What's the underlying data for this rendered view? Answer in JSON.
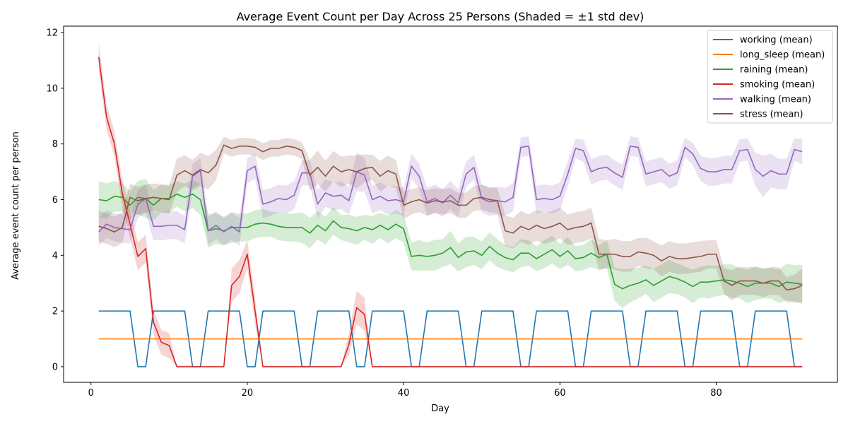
{
  "chart_data": {
    "type": "line",
    "title": "Average Event Count per Day Across 25 Persons (Shaded = ±1 std dev)",
    "xlabel": "Day",
    "ylabel": "Average event count per person",
    "xlim": [
      -3.5,
      95.5
    ],
    "ylim": [
      -0.56,
      12.23
    ],
    "xticks": [
      0,
      20,
      40,
      60,
      80
    ],
    "yticks": [
      0,
      2,
      4,
      6,
      8,
      10,
      12
    ],
    "grid": false,
    "legend_position": "top-right",
    "x_start": 1,
    "series": [
      {
        "name": "working (mean)",
        "color": "#1f77b4",
        "values": [
          2,
          2,
          2,
          2,
          2,
          0,
          0,
          2,
          2,
          2,
          2,
          2,
          0,
          0,
          2,
          2,
          2,
          2,
          2,
          0,
          0,
          2,
          2,
          2,
          2,
          2,
          0,
          0,
          2,
          2,
          2,
          2,
          2,
          0,
          0,
          2,
          2,
          2,
          2,
          2,
          0,
          0,
          2,
          2,
          2,
          2,
          2,
          0,
          0,
          2,
          2,
          2,
          2,
          2,
          0,
          0,
          2,
          2,
          2,
          2,
          2,
          0,
          0,
          2,
          2,
          2,
          2,
          2,
          0,
          0,
          2,
          2,
          2,
          2,
          2,
          0,
          0,
          2,
          2,
          2,
          2,
          2,
          0,
          0,
          2,
          2,
          2,
          2,
          2,
          0,
          0
        ],
        "std": [
          0,
          0,
          0,
          0,
          0,
          0,
          0,
          0,
          0,
          0,
          0,
          0,
          0,
          0,
          0,
          0,
          0,
          0,
          0,
          0,
          0,
          0,
          0,
          0,
          0,
          0,
          0,
          0,
          0,
          0,
          0,
          0,
          0,
          0,
          0,
          0,
          0,
          0,
          0,
          0,
          0,
          0,
          0,
          0,
          0,
          0,
          0,
          0,
          0,
          0,
          0,
          0,
          0,
          0,
          0,
          0,
          0,
          0,
          0,
          0,
          0,
          0,
          0,
          0,
          0,
          0,
          0,
          0,
          0,
          0,
          0,
          0,
          0,
          0,
          0,
          0,
          0,
          0,
          0,
          0,
          0,
          0,
          0,
          0,
          0,
          0,
          0,
          0,
          0,
          0,
          0
        ]
      },
      {
        "name": "long_sleep (mean)",
        "color": "#ff7f0e",
        "values": [
          1,
          1,
          1,
          1,
          1,
          1,
          1,
          1,
          1,
          1,
          1,
          1,
          1,
          1,
          1,
          1,
          1,
          1,
          1,
          1,
          1,
          1,
          1,
          1,
          1,
          1,
          1,
          1,
          1,
          1,
          1,
          1,
          1,
          1,
          1,
          1,
          1,
          1,
          1,
          1,
          1,
          1,
          1,
          1,
          1,
          1,
          1,
          1,
          1,
          1,
          1,
          1,
          1,
          1,
          1,
          1,
          1,
          1,
          1,
          1,
          1,
          1,
          1,
          1,
          1,
          1,
          1,
          1,
          1,
          1,
          1,
          1,
          1,
          1,
          1,
          1,
          1,
          1,
          1,
          1,
          1,
          1,
          1,
          1,
          1,
          1,
          1,
          1,
          1,
          1,
          1
        ],
        "std": [
          0,
          0,
          0,
          0,
          0,
          0,
          0,
          0,
          0,
          0,
          0,
          0,
          0,
          0,
          0,
          0,
          0,
          0,
          0,
          0,
          0,
          0,
          0,
          0,
          0,
          0,
          0,
          0,
          0,
          0,
          0,
          0,
          0,
          0,
          0,
          0,
          0,
          0,
          0,
          0,
          0,
          0,
          0,
          0,
          0,
          0,
          0,
          0,
          0,
          0,
          0,
          0,
          0,
          0,
          0,
          0,
          0,
          0,
          0,
          0,
          0,
          0,
          0,
          0,
          0,
          0,
          0,
          0,
          0,
          0,
          0,
          0,
          0,
          0,
          0,
          0,
          0,
          0,
          0,
          0,
          0,
          0,
          0,
          0,
          0,
          0,
          0,
          0,
          0,
          0,
          0
        ]
      },
      {
        "name": "raining (mean)",
        "color": "#2ca02c",
        "values": [
          6.0,
          5.96,
          6.12,
          6.08,
          5.8,
          6.08,
          6.04,
          5.8,
          6.04,
          6.04,
          6.2,
          6.08,
          6.2,
          6.0,
          4.88,
          4.96,
          4.88,
          5.0,
          5.0,
          5.0,
          5.12,
          5.16,
          5.12,
          5.04,
          5.0,
          5.0,
          5.0,
          4.8,
          5.08,
          4.88,
          5.24,
          5.0,
          4.96,
          4.88,
          5.0,
          4.92,
          5.08,
          4.92,
          5.12,
          4.96,
          3.96,
          4.0,
          3.96,
          4.0,
          4.08,
          4.28,
          3.92,
          4.12,
          4.16,
          4.0,
          4.32,
          4.08,
          3.92,
          3.84,
          4.08,
          4.08,
          3.88,
          4.04,
          4.2,
          3.96,
          4.16,
          3.88,
          3.92,
          4.08,
          3.92,
          4.04,
          2.96,
          2.8,
          2.92,
          3.0,
          3.12,
          2.92,
          3.08,
          3.24,
          3.16,
          3.04,
          2.88,
          3.04,
          3.04,
          3.08,
          3.12,
          3.08,
          3.0,
          2.88,
          3.0,
          3.0,
          3.0,
          2.88,
          3.04,
          3.0,
          2.96
        ],
        "std": [
          0.65,
          0.62,
          0.55,
          0.5,
          0.5,
          0.6,
          0.7,
          0.55,
          0.5,
          0.5,
          0.45,
          0.5,
          0.5,
          0.55,
          0.6,
          0.55,
          0.5,
          0.55,
          0.5,
          0.5,
          0.5,
          0.5,
          0.45,
          0.5,
          0.5,
          0.5,
          0.55,
          0.55,
          0.5,
          0.5,
          0.5,
          0.45,
          0.5,
          0.5,
          0.45,
          0.5,
          0.45,
          0.5,
          0.5,
          0.5,
          0.5,
          0.55,
          0.5,
          0.55,
          0.5,
          0.6,
          0.5,
          0.55,
          0.5,
          0.5,
          0.5,
          0.5,
          0.45,
          0.45,
          0.5,
          0.45,
          0.45,
          0.5,
          0.5,
          0.45,
          0.5,
          0.45,
          0.45,
          0.5,
          0.45,
          0.5,
          0.6,
          0.7,
          0.6,
          0.55,
          0.5,
          0.6,
          0.6,
          0.6,
          0.55,
          0.55,
          0.6,
          0.55,
          0.6,
          0.55,
          0.55,
          0.6,
          0.55,
          0.6,
          0.6,
          0.55,
          0.55,
          0.6,
          0.65,
          0.65,
          0.7
        ]
      },
      {
        "name": "smoking (mean)",
        "color": "#d62728",
        "values": [
          11.12,
          8.96,
          8.0,
          6.24,
          5.12,
          3.96,
          4.24,
          1.6,
          0.88,
          0.76,
          0,
          0,
          0,
          0,
          0,
          0,
          0,
          2.92,
          3.24,
          4.04,
          2.0,
          0,
          0,
          0,
          0,
          0,
          0,
          0,
          0,
          0,
          0,
          0,
          0.8,
          2.12,
          1.88,
          0,
          0,
          0,
          0,
          0,
          0,
          0,
          0,
          0,
          0,
          0,
          0,
          0,
          0,
          0,
          0,
          0,
          0,
          0,
          0,
          0,
          0,
          0,
          0,
          0,
          0,
          0,
          0,
          0,
          0,
          0,
          0,
          0,
          0,
          0,
          0,
          0,
          0,
          0,
          0,
          0,
          0,
          0,
          0,
          0,
          0,
          0,
          0,
          0,
          0,
          0,
          0,
          0,
          0,
          0,
          0
        ],
        "std": [
          0.5,
          0.45,
          0.45,
          0.5,
          0.5,
          0.5,
          0.5,
          0.45,
          0.45,
          0.45,
          0,
          0,
          0,
          0,
          0,
          0,
          0,
          0.6,
          0.6,
          0.5,
          0.5,
          0,
          0,
          0,
          0,
          0,
          0,
          0,
          0,
          0,
          0,
          0,
          0.4,
          0.6,
          0.6,
          0,
          0,
          0,
          0,
          0,
          0,
          0,
          0,
          0,
          0,
          0,
          0,
          0,
          0,
          0,
          0,
          0,
          0,
          0,
          0,
          0,
          0,
          0,
          0,
          0,
          0,
          0,
          0,
          0,
          0,
          0,
          0,
          0,
          0,
          0,
          0,
          0,
          0,
          0,
          0,
          0,
          0,
          0,
          0,
          0,
          0,
          0,
          0,
          0,
          0,
          0,
          0,
          0,
          0,
          0,
          0
        ]
      },
      {
        "name": "walking (mean)",
        "color": "#9467bd",
        "values": [
          4.84,
          5.12,
          5.0,
          4.96,
          4.92,
          5.84,
          6.04,
          5.04,
          5.04,
          5.08,
          5.08,
          4.92,
          6.84,
          7.04,
          4.88,
          5.08,
          4.84,
          5.04,
          4.84,
          7.04,
          7.2,
          5.84,
          5.92,
          6.04,
          6.0,
          6.16,
          6.96,
          6.96,
          5.84,
          6.24,
          6.12,
          6.16,
          5.96,
          7.0,
          6.88,
          6.0,
          6.12,
          5.96,
          6.0,
          5.92,
          7.2,
          6.84,
          5.92,
          6.04,
          5.88,
          6.16,
          5.88,
          6.92,
          7.16,
          6.04,
          5.92,
          5.96,
          5.92,
          6.08,
          7.88,
          7.92,
          6.0,
          6.04,
          6.0,
          6.12,
          6.92,
          7.84,
          7.76,
          7.0,
          7.12,
          7.16,
          6.96,
          6.8,
          7.92,
          7.88,
          6.92,
          7.0,
          7.08,
          6.84,
          6.96,
          7.88,
          7.64,
          7.12,
          7.0,
          7.0,
          7.08,
          7.08,
          7.76,
          7.8,
          7.08,
          6.84,
          7.04,
          6.92,
          6.92,
          7.8,
          7.72
        ],
        "std": [
          0.5,
          0.5,
          0.5,
          0.5,
          0.5,
          0.5,
          0.5,
          0.5,
          0.5,
          0.5,
          0.5,
          0.5,
          0.45,
          0.45,
          0.5,
          0.5,
          0.5,
          0.5,
          0.5,
          0.45,
          0.45,
          0.5,
          0.5,
          0.5,
          0.5,
          0.5,
          0.45,
          0.45,
          0.5,
          0.5,
          0.5,
          0.5,
          0.5,
          0.7,
          0.6,
          0.5,
          0.5,
          0.5,
          0.5,
          0.5,
          0.45,
          0.45,
          0.5,
          0.5,
          0.5,
          0.5,
          0.5,
          0.45,
          0.45,
          0.5,
          0.5,
          0.5,
          0.5,
          0.5,
          0.35,
          0.35,
          0.5,
          0.5,
          0.5,
          0.5,
          0.45,
          0.35,
          0.4,
          0.45,
          0.45,
          0.45,
          0.45,
          0.45,
          0.35,
          0.35,
          0.45,
          0.45,
          0.45,
          0.45,
          0.45,
          0.35,
          0.4,
          0.45,
          0.5,
          0.5,
          0.5,
          0.5,
          0.4,
          0.4,
          0.6,
          0.75,
          0.6,
          0.55,
          0.55,
          0.4,
          0.45
        ]
      },
      {
        "name": "stress (mean)",
        "color": "#8c564b",
        "values": [
          5.04,
          4.96,
          4.84,
          5.0,
          6.08,
          5.96,
          6.04,
          6.08,
          6.04,
          6.0,
          6.88,
          7.04,
          6.88,
          7.08,
          6.96,
          7.24,
          7.96,
          7.84,
          7.92,
          7.92,
          7.88,
          7.72,
          7.84,
          7.84,
          7.92,
          7.88,
          7.76,
          6.88,
          7.16,
          6.84,
          7.2,
          7.0,
          7.08,
          7.0,
          7.12,
          7.16,
          6.84,
          7.04,
          6.92,
          5.8,
          5.92,
          6.0,
          5.88,
          5.96,
          5.92,
          5.96,
          5.8,
          5.8,
          6.04,
          6.08,
          6.0,
          5.96,
          4.88,
          4.8,
          5.04,
          4.92,
          5.08,
          4.96,
          5.04,
          5.16,
          4.92,
          5.0,
          5.04,
          5.16,
          4.04,
          4.04,
          4.04,
          3.96,
          3.96,
          4.12,
          4.08,
          4.0,
          3.8,
          3.96,
          3.88,
          3.88,
          3.92,
          3.96,
          4.04,
          4.04,
          3.08,
          2.92,
          3.08,
          3.08,
          3.08,
          3.0,
          3.08,
          3.08,
          2.76,
          2.8,
          2.92
        ],
        "std": [
          0.55,
          0.55,
          0.55,
          0.55,
          0.5,
          0.5,
          0.5,
          0.5,
          0.5,
          0.5,
          0.6,
          0.55,
          0.55,
          0.6,
          0.6,
          0.55,
          0.3,
          0.3,
          0.3,
          0.3,
          0.3,
          0.3,
          0.3,
          0.3,
          0.3,
          0.3,
          0.3,
          0.55,
          0.6,
          0.55,
          0.55,
          0.55,
          0.5,
          0.6,
          0.5,
          0.45,
          0.55,
          0.55,
          0.5,
          0.5,
          0.45,
          0.45,
          0.45,
          0.45,
          0.45,
          0.45,
          0.45,
          0.45,
          0.45,
          0.45,
          0.45,
          0.45,
          0.55,
          0.55,
          0.55,
          0.55,
          0.55,
          0.55,
          0.55,
          0.55,
          0.55,
          0.55,
          0.55,
          0.55,
          0.55,
          0.5,
          0.55,
          0.55,
          0.55,
          0.5,
          0.55,
          0.5,
          0.55,
          0.55,
          0.55,
          0.55,
          0.55,
          0.55,
          0.5,
          0.5,
          0.45,
          0.55,
          0.5,
          0.5,
          0.5,
          0.5,
          0.5,
          0.5,
          0.45,
          0.5,
          0.6
        ]
      }
    ]
  }
}
